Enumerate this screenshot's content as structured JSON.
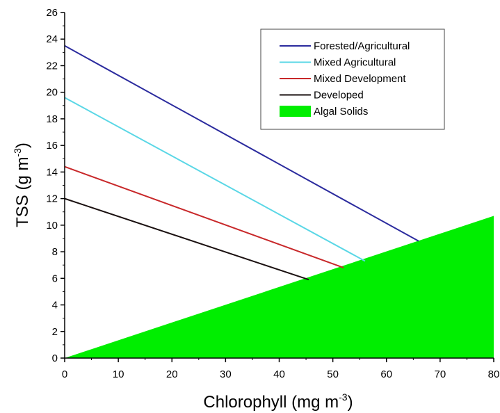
{
  "chart_data": {
    "type": "line",
    "xlabel": "Chlorophyll (mg m",
    "xlabel_sup": "-3",
    "xlabel_end": ")",
    "ylabel": "TSS (g m",
    "ylabel_sup": "-3",
    "ylabel_end": ")",
    "xlim": [
      0,
      80
    ],
    "ylim": [
      0,
      26
    ],
    "xticks": [
      "0",
      "10",
      "20",
      "30",
      "40",
      "50",
      "60",
      "70",
      "80"
    ],
    "yticks": [
      "0",
      "2",
      "4",
      "6",
      "8",
      "10",
      "12",
      "14",
      "16",
      "18",
      "20",
      "22",
      "24",
      "26"
    ],
    "grid": false,
    "legend_position": "top-right",
    "series": [
      {
        "name": "Forested/Agricultural",
        "color": "#2b2b9e",
        "x": [
          0,
          66
        ],
        "y": [
          23.5,
          8.8
        ]
      },
      {
        "name": "Mixed Agricultural",
        "color": "#5ad7e6",
        "x": [
          0,
          56
        ],
        "y": [
          19.6,
          7.3
        ]
      },
      {
        "name": "Mixed Development",
        "color": "#c8282a",
        "x": [
          0,
          52
        ],
        "y": [
          14.4,
          6.8
        ]
      },
      {
        "name": "Developed",
        "color": "#1a1010",
        "x": [
          0,
          45.5
        ],
        "y": [
          12.0,
          5.9
        ]
      }
    ],
    "area": {
      "name": "Algal Solids",
      "color": "#00ee00",
      "x": [
        0,
        80
      ],
      "y": [
        0,
        10.7
      ]
    }
  }
}
